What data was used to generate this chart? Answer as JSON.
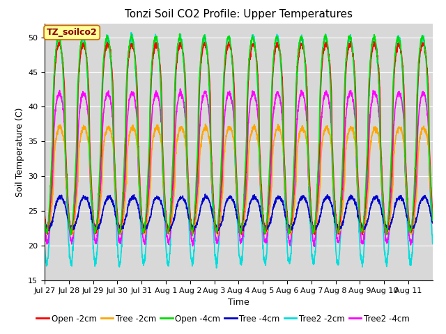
{
  "title": "Tonzi Soil CO2 Profile: Upper Temperatures",
  "xlabel": "Time",
  "ylabel": "Soil Temperature (C)",
  "ylim": [
    15,
    52
  ],
  "background_color": "#ffffff",
  "plot_bg_color": "#d8d8d8",
  "series": [
    {
      "label": "Open -2cm",
      "color": "#ff0000"
    },
    {
      "label": "Tree -2cm",
      "color": "#ffa500"
    },
    {
      "label": "Open -4cm",
      "color": "#00dd00"
    },
    {
      "label": "Tree -4cm",
      "color": "#0000cc"
    },
    {
      "label": "Tree2 -2cm",
      "color": "#00dddd"
    },
    {
      "label": "Tree2 -4cm",
      "color": "#ff00ff"
    }
  ],
  "xtick_labels": [
    "Jul 27",
    "Jul 28",
    "Jul 29",
    "Jul 30",
    "Jul 31",
    "Aug 1",
    "Aug 2",
    "Aug 3",
    "Aug 4",
    "Aug 5",
    "Aug 6",
    "Aug 7",
    "Aug 8",
    "Aug 9",
    "Aug 10",
    "Aug 11"
  ],
  "annotation_text": "TZ_soilco2",
  "annotation_box_color": "#ffff99",
  "annotation_box_edge": "#cc6600",
  "title_fontsize": 11,
  "label_fontsize": 9,
  "tick_fontsize": 8,
  "legend_fontsize": 8.5,
  "n_days": 16,
  "pts_per_day": 144
}
